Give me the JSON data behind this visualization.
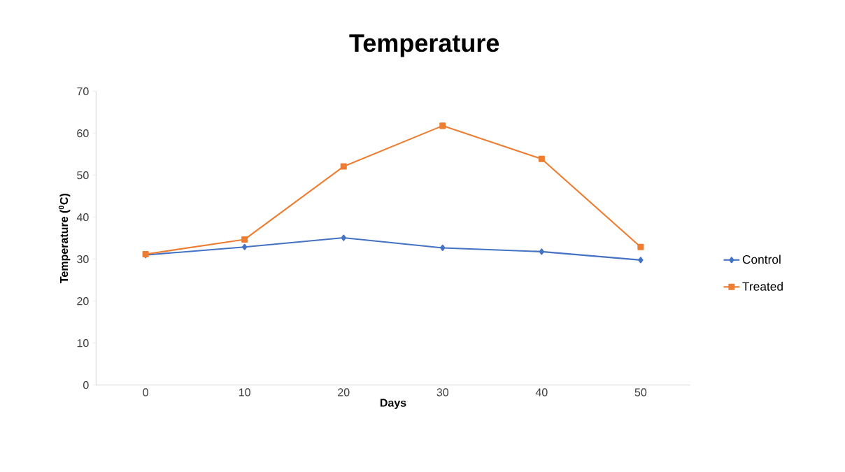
{
  "chart_data": {
    "type": "line",
    "title": "Temperature",
    "xlabel": "Days",
    "ylabel": "Temperature ($^{0}$C)",
    "categories": [
      "0",
      "10",
      "20",
      "30",
      "40",
      "50"
    ],
    "series": [
      {
        "name": "Control",
        "color": "#4472c4",
        "marker": "diamond",
        "values": [
          31.0,
          32.9,
          35.1,
          32.7,
          31.8,
          29.8
        ]
      },
      {
        "name": "Treated",
        "color": "#ed7d31",
        "marker": "square",
        "values": [
          31.2,
          34.7,
          52.1,
          61.8,
          53.9,
          32.9
        ]
      }
    ],
    "ylim": [
      0,
      70
    ],
    "yticks": [
      0,
      10,
      20,
      30,
      40,
      50,
      60,
      70
    ],
    "grid": false,
    "legend": "right",
    "line_style": "solid"
  }
}
